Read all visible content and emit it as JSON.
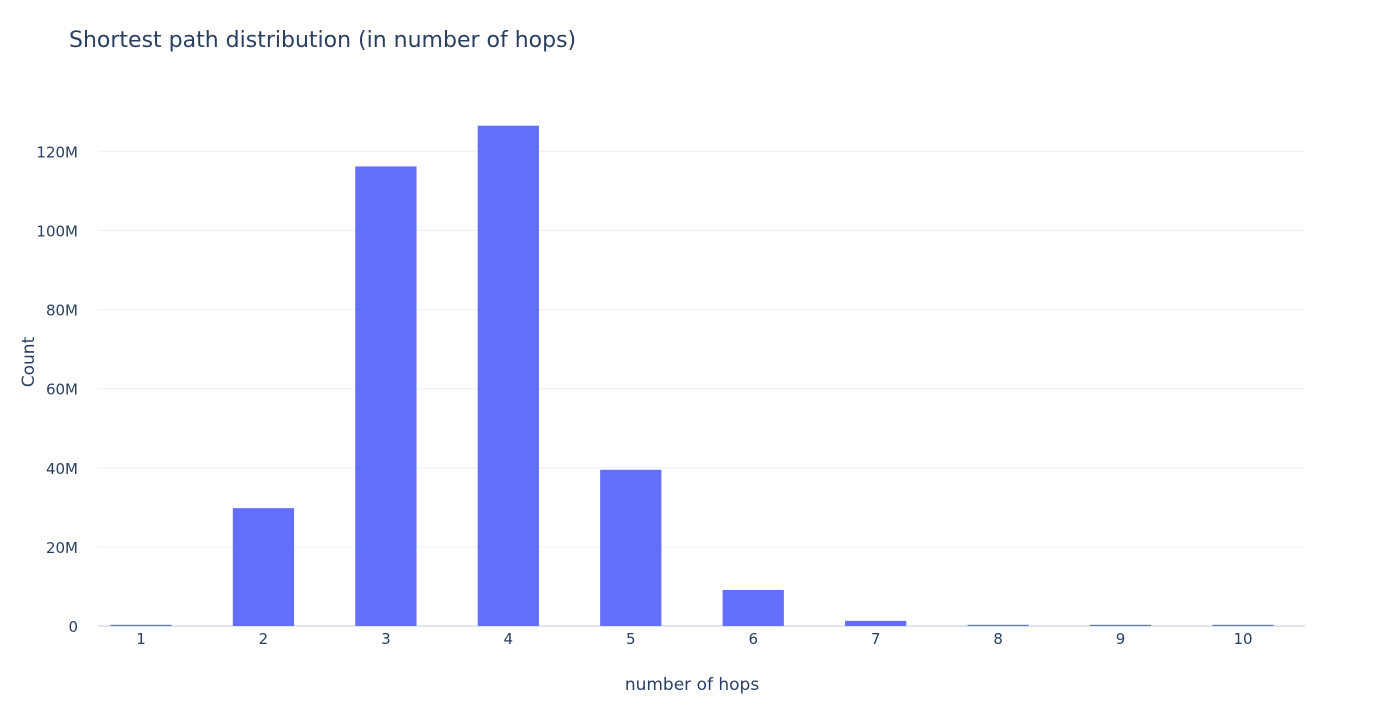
{
  "chart_data": {
    "type": "bar",
    "title": "Shortest path distribution (in number of hops)",
    "xlabel": "number of hops",
    "ylabel": "Count",
    "categories": [
      "1",
      "2",
      "3",
      "4",
      "5",
      "6",
      "7",
      "8",
      "9",
      "10"
    ],
    "values": [
      150000,
      29800000,
      116200000,
      126500000,
      39500000,
      9100000,
      1300000,
      180000,
      40000,
      8000
    ],
    "ylim": [
      0,
      133000000
    ],
    "yticks": [
      0,
      20000000,
      40000000,
      60000000,
      80000000,
      100000000,
      120000000
    ],
    "ytick_labels": [
      "0",
      "20M",
      "40M",
      "60M",
      "80M",
      "100M",
      "120M"
    ],
    "grid": true,
    "colors": {
      "bar": "#636efa",
      "grid": "#ebf0f8",
      "text": "#2a3f5f"
    }
  }
}
